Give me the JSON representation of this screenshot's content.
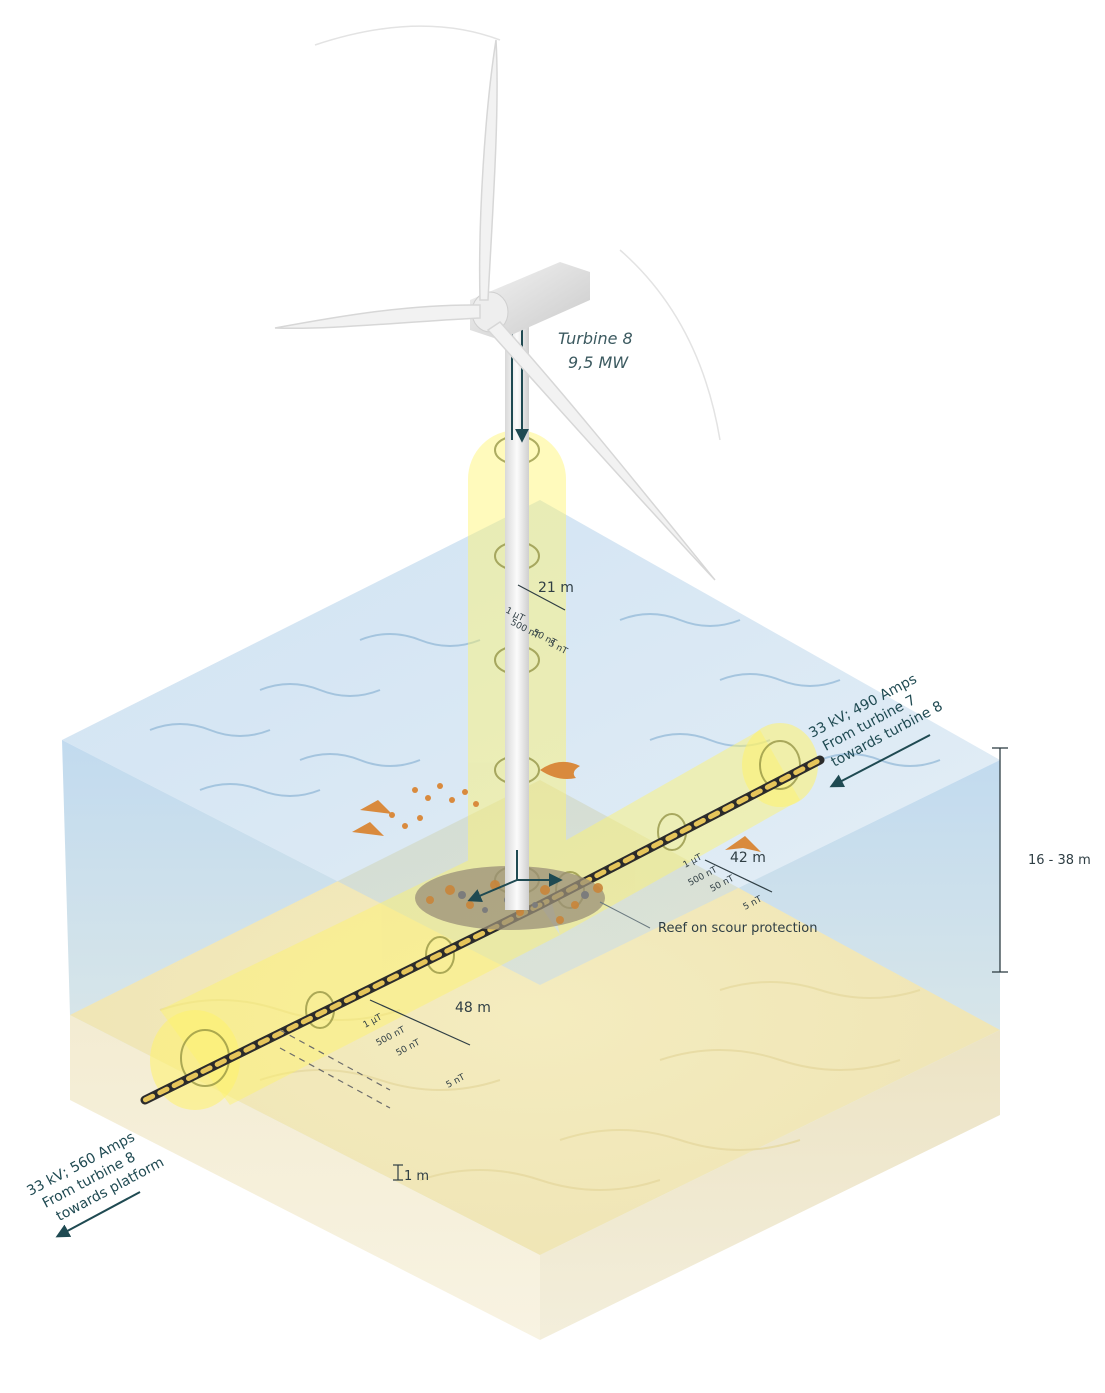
{
  "turbine": {
    "name": "Turbine 8",
    "power": "9,5 MW"
  },
  "tower_field": {
    "distance": "21  m",
    "contours": [
      "1 µT",
      "500 nT",
      "50 nT",
      "5 nT"
    ]
  },
  "cable_in": {
    "line1": "33 kV; 490 Amps",
    "line2": "From turbine 7",
    "line3": "towards turbine 8"
  },
  "cable_in_field": {
    "distance": "42  m",
    "contours": [
      "1 µT",
      "500 nT",
      "50 nT",
      "5 nT"
    ]
  },
  "cable_out": {
    "line1": "33 kV; 560 Amps",
    "line2": "From turbine 8",
    "line3": "towards platform"
  },
  "cable_out_field": {
    "distance": "48  m",
    "contours": [
      "1 µT",
      "500 nT",
      "50 nT",
      "5 nT"
    ]
  },
  "depth": {
    "label": "16 - 38 m"
  },
  "burial": {
    "label": "1 m"
  },
  "reef": {
    "label": "Reef on scour protection"
  },
  "colors": {
    "water": "#bcd7ea",
    "seabed": "#f1e8b8",
    "sediment": "#f6efd9",
    "field": "#fff36b",
    "text": "#2f3e44",
    "arrow": "#1f4a52"
  }
}
